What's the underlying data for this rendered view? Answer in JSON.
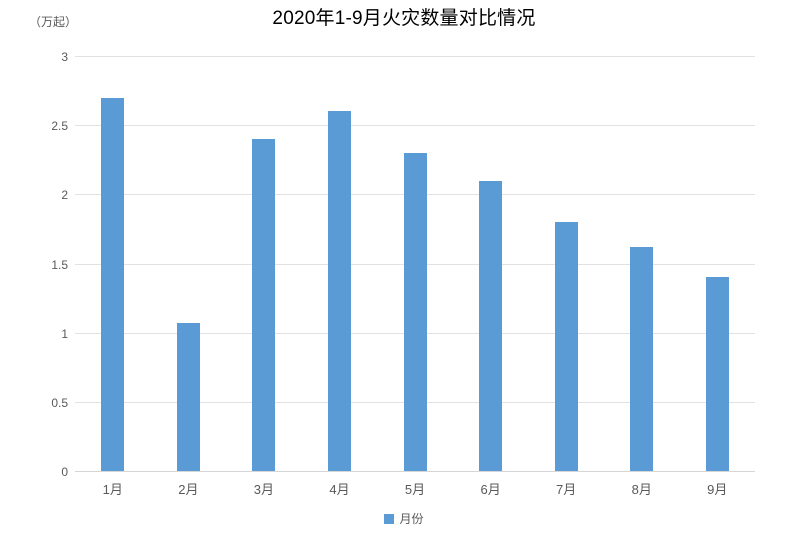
{
  "chart": {
    "title": "2020年1-9月火灾数量对比情况",
    "unit_label": "（万起）",
    "legend": {
      "label": "月份"
    }
  },
  "chart_data": {
    "type": "bar",
    "title": "2020年1-9月火灾数量对比情况",
    "series_name": "月份",
    "categories": [
      "1月",
      "2月",
      "3月",
      "4月",
      "5月",
      "6月",
      "7月",
      "8月",
      "9月"
    ],
    "values": [
      2.7,
      1.07,
      2.4,
      2.6,
      2.3,
      2.1,
      1.8,
      1.62,
      1.4
    ],
    "ylabel": "（万起）",
    "ylim": [
      0,
      3
    ],
    "yticks": [
      0,
      0.5,
      1,
      1.5,
      2,
      2.5,
      3
    ],
    "grid": true,
    "legend_position": "bottom",
    "colors": {
      "bar": "#5B9BD5",
      "gridline": "#E2E2E2",
      "axis_line": "#D6D6D6",
      "axis_text": "#595959",
      "title_text": "#000000",
      "background": "#FFFFFF"
    }
  }
}
